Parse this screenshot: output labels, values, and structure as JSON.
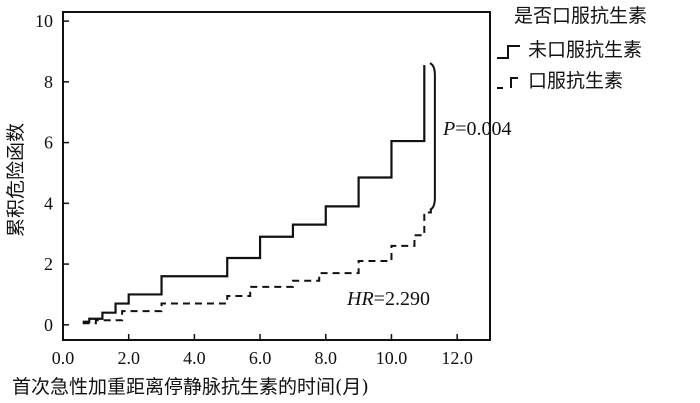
{
  "chart_data": {
    "type": "line",
    "xlabel": "首次急性加重距离停静脉抗生素的时间(月)",
    "ylabel": "累积危险函数",
    "xlim": [
      0,
      13
    ],
    "ylim": [
      -0.5,
      10.3
    ],
    "xticks": [
      0,
      2,
      4,
      6,
      8,
      10,
      12
    ],
    "xtick_labels": [
      "0.0",
      "2.0",
      "4.0",
      "6.0",
      "8.0",
      "10.0",
      "12.0"
    ],
    "yticks": [
      0,
      2,
      4,
      6,
      8,
      10
    ],
    "ytick_labels": [
      "0",
      "2",
      "4",
      "6",
      "8",
      "10"
    ],
    "legend": {
      "title": "是否口服抗生素",
      "placement": "top-right, outside plot"
    },
    "grid": false,
    "annotations": {
      "p_italic": "P",
      "p_rest": "=0.004",
      "hr_italic": "HR",
      "hr_rest": "=2.290"
    },
    "series": [
      {
        "name": "未口服抗生素",
        "style": "solid",
        "color": "#111111",
        "x": [
          0.6,
          0.8,
          1.2,
          1.6,
          2.0,
          3.0,
          5.0,
          6.0,
          7.0,
          8.0,
          9.0,
          10.0,
          11.0
        ],
        "y": [
          0.1,
          0.2,
          0.4,
          0.7,
          1.0,
          1.6,
          2.2,
          2.9,
          3.3,
          3.9,
          4.85,
          6.05,
          8.55
        ]
      },
      {
        "name": "口服抗生素",
        "style": "dashed",
        "color": "#111111",
        "x": [
          0.6,
          1.0,
          1.8,
          3.0,
          5.0,
          5.7,
          7.0,
          7.8,
          9.0,
          10.0,
          10.7,
          11.0,
          11.2
        ],
        "y": [
          0.05,
          0.15,
          0.45,
          0.7,
          0.95,
          1.25,
          1.45,
          1.7,
          2.1,
          2.6,
          2.95,
          3.7,
          3.85
        ]
      }
    ]
  }
}
